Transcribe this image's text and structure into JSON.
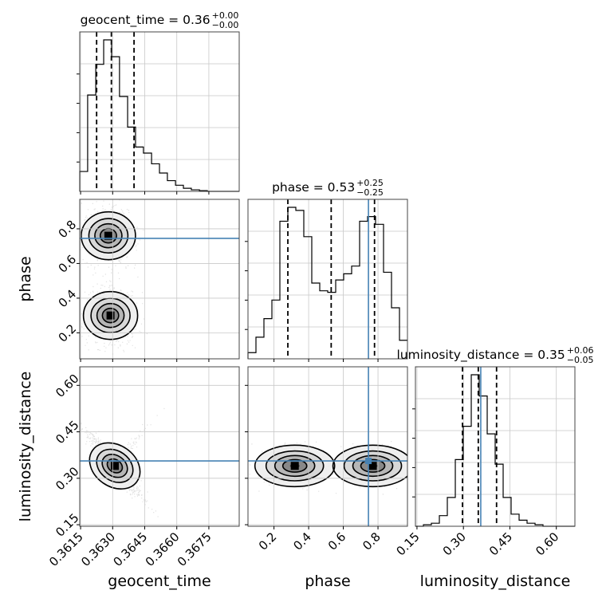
{
  "chart_data": {
    "type": "corner",
    "parameters": [
      "geocent_time",
      "phase",
      "luminosity_distance"
    ],
    "axis_labels": {
      "geocent_time": "geocent_time",
      "phase": "phase",
      "luminosity_distance": "luminosity_distance"
    },
    "titles": [
      {
        "param": "geocent_time",
        "name": "geocent_time",
        "median": "0.36",
        "upper": "+0.00",
        "lower": "−0.00"
      },
      {
        "param": "phase",
        "name": "phase",
        "median": "0.53",
        "upper": "+0.25",
        "lower": "−0.25"
      },
      {
        "param": "luminosity_distance",
        "name": "luminosity_distance",
        "median": "0.35",
        "upper": "+0.06",
        "lower": "−0.05"
      }
    ],
    "ranges": {
      "geocent_time": [
        0.36146,
        0.36892
      ],
      "phase": [
        0.05,
        0.97
      ],
      "luminosity_distance": [
        0.145,
        0.66
      ]
    },
    "ticks": {
      "geocent_time": [
        0.3615,
        0.363,
        0.3645,
        0.366,
        0.3675
      ],
      "phase": [
        0.2,
        0.4,
        0.6,
        0.8
      ],
      "luminosity_distance": [
        0.15,
        0.3,
        0.45,
        0.6
      ]
    },
    "tick_labels": {
      "geocent_time": [
        "0.3615",
        "0.3630",
        "0.3645",
        "0.3660",
        "0.3675"
      ],
      "phase": [
        "0.2",
        "0.4",
        "0.6",
        "0.8"
      ],
      "luminosity_distance": [
        "0.15",
        "0.30",
        "0.45",
        "0.60"
      ]
    },
    "quantiles": {
      "geocent_time": [
        0.36225,
        0.36294,
        0.364
      ],
      "phase": [
        0.28,
        0.53,
        0.78
      ],
      "luminosity_distance": [
        0.297,
        0.348,
        0.407
      ]
    },
    "truths": {
      "geocent_time": null,
      "phase": 0.745,
      "luminosity_distance": 0.356
    },
    "histograms": {
      "geocent_time": {
        "edges": [
          0.36146,
          0.36183,
          0.36221,
          0.36258,
          0.36295,
          0.36332,
          0.3637,
          0.36407,
          0.36444,
          0.36482,
          0.36519,
          0.36556,
          0.36594,
          0.36631,
          0.36668,
          0.36706,
          0.36743,
          0.3678,
          0.36818,
          0.36855,
          0.36892
        ],
        "counts": [
          0.13,
          0.63,
          0.83,
          0.99,
          0.88,
          0.62,
          0.42,
          0.29,
          0.25,
          0.18,
          0.12,
          0.07,
          0.04,
          0.02,
          0.01,
          0.005,
          0.0,
          0.0,
          0.0,
          0.0
        ]
      },
      "phase": {
        "edges": [
          0.05,
          0.096,
          0.142,
          0.188,
          0.234,
          0.28,
          0.326,
          0.372,
          0.418,
          0.464,
          0.51,
          0.556,
          0.602,
          0.648,
          0.694,
          0.74,
          0.786,
          0.832,
          0.878,
          0.924,
          0.97
        ],
        "counts": [
          0.04,
          0.14,
          0.26,
          0.38,
          0.89,
          0.98,
          0.96,
          0.79,
          0.49,
          0.44,
          0.43,
          0.51,
          0.55,
          0.6,
          0.89,
          0.92,
          0.87,
          0.56,
          0.33,
          0.12
        ]
      },
      "luminosity_distance": {
        "edges": [
          0.145,
          0.1708,
          0.1965,
          0.2223,
          0.248,
          0.2738,
          0.2995,
          0.3253,
          0.351,
          0.3768,
          0.4025,
          0.4283,
          0.454,
          0.4798,
          0.5055,
          0.5313,
          0.557,
          0.5828,
          0.6085,
          0.6343,
          0.66
        ],
        "counts": [
          0.0,
          0.01,
          0.02,
          0.07,
          0.19,
          0.44,
          0.66,
          1.0,
          0.86,
          0.61,
          0.41,
          0.19,
          0.08,
          0.04,
          0.02,
          0.01,
          0.0,
          0.0,
          0.0,
          0.0
        ]
      }
    },
    "joint_modes": [
      {
        "x": "geocent_time",
        "y": "phase",
        "modes": [
          [
            0.3628,
            0.76
          ],
          [
            0.3629,
            0.3
          ]
        ]
      },
      {
        "x": "geocent_time",
        "y": "luminosity_distance",
        "modes": [
          [
            0.3631,
            0.34
          ]
        ]
      },
      {
        "x": "phase",
        "y": "luminosity_distance",
        "modes": [
          [
            0.32,
            0.34
          ],
          [
            0.77,
            0.34
          ]
        ]
      }
    ],
    "grid": true
  }
}
